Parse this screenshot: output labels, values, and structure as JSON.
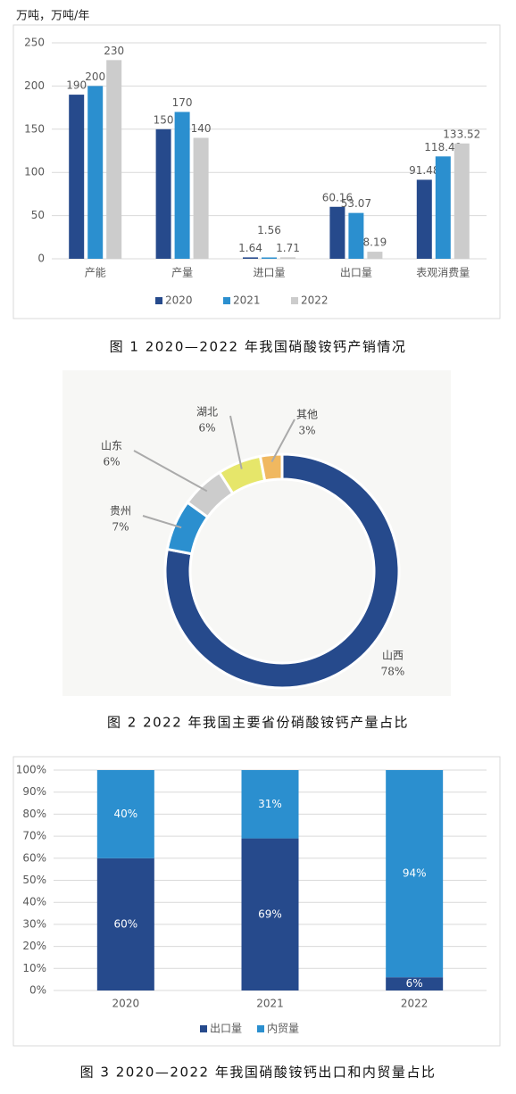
{
  "chart_data": [
    {
      "type": "bar",
      "ylabel": "万吨，万吨/年",
      "caption": "图 1  2020—2022 年我国硝酸铵钙产销情况",
      "categories": [
        "产能",
        "产量",
        "进口量",
        "出口量",
        "表观消费量"
      ],
      "series": [
        {
          "name": "2020",
          "color": "#264a8c",
          "values": [
            190,
            150,
            1.64,
            60.16,
            91.48
          ]
        },
        {
          "name": "2021",
          "color": "#2b8fcf",
          "values": [
            200,
            170,
            1.56,
            53.07,
            118.49
          ]
        },
        {
          "name": "2022",
          "color": "#cccccc",
          "values": [
            230,
            140,
            1.71,
            8.19,
            133.52
          ]
        }
      ],
      "ylim": [
        0,
        250
      ],
      "yticks": [
        0,
        50,
        100,
        150,
        200,
        250
      ],
      "grid": true,
      "legend": "bottom"
    },
    {
      "type": "pie",
      "caption": "图 2  2022 年我国主要省份硝酸铵钙产量占比",
      "categories": [
        "山西",
        "贵州",
        "山东",
        "湖北",
        "其他"
      ],
      "values": [
        78,
        7,
        6,
        6,
        3
      ],
      "value_labels": [
        "78%",
        "7%",
        "6%",
        "6%",
        "3%"
      ],
      "colors": [
        "#264a8c",
        "#2b8fcf",
        "#cccccc",
        "#e6e66a",
        "#f0b860"
      ]
    },
    {
      "type": "stacked_bar",
      "caption": "图 3  2020—2022 年我国硝酸铵钙出口和内贸量占比",
      "categories": [
        "2020",
        "2021",
        "2022"
      ],
      "series": [
        {
          "name": "出口量",
          "color": "#264a8c",
          "values": [
            60,
            69,
            6
          ],
          "value_labels": [
            "60%",
            "69%",
            "6%"
          ]
        },
        {
          "name": "内贸量",
          "color": "#2b8fcf",
          "values": [
            40,
            31,
            94
          ],
          "value_labels": [
            "40%",
            "31%",
            "94%"
          ]
        }
      ],
      "ylim": [
        0,
        100
      ],
      "yticks": [
        {
          "value": 0,
          "label": "0%"
        },
        {
          "value": 10,
          "label": "10%"
        },
        {
          "value": 20,
          "label": "20%"
        },
        {
          "value": 30,
          "label": "30%"
        },
        {
          "value": 40,
          "label": "40%"
        },
        {
          "value": 50,
          "label": "50%"
        },
        {
          "value": 60,
          "label": "60%"
        },
        {
          "value": 70,
          "label": "70%"
        },
        {
          "value": 80,
          "label": "80%"
        },
        {
          "value": 90,
          "label": "90%"
        },
        {
          "value": 100,
          "label": "100%"
        }
      ],
      "grid": true,
      "legend": "bottom"
    }
  ]
}
